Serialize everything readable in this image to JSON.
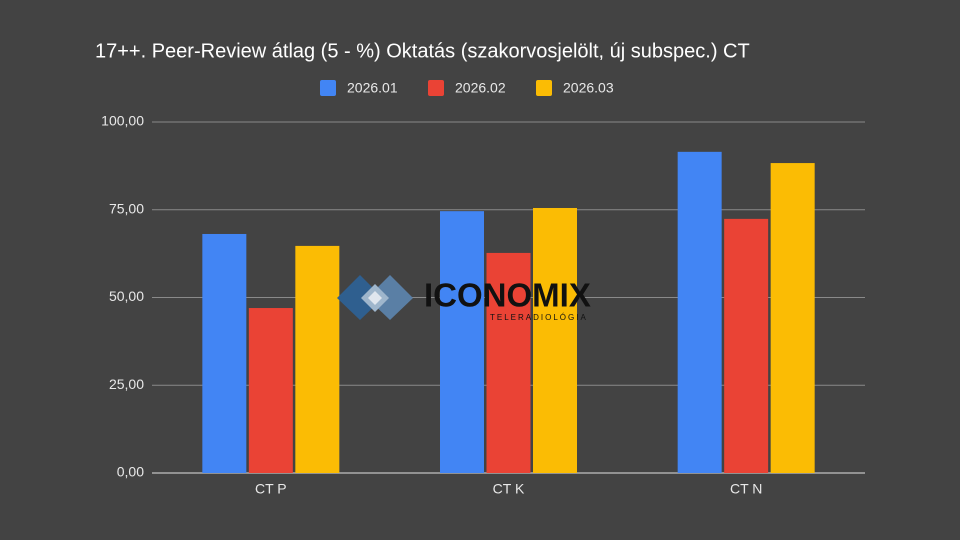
{
  "chart_data": {
    "type": "bar",
    "title": "17++. Peer-Review átlag (5 - %) Oktatás (szakorvosjelölt, új subspec.) CT",
    "categories": [
      "CT P",
      "CT K",
      "CT N"
    ],
    "series": [
      {
        "name": "2026.01",
        "color": "#4285f4",
        "values": [
          68.1,
          74.6,
          91.5
        ]
      },
      {
        "name": "2026.02",
        "color": "#ea4335",
        "values": [
          47.0,
          62.7,
          72.4
        ]
      },
      {
        "name": "2026.03",
        "color": "#fbbc04",
        "values": [
          64.7,
          75.5,
          88.3
        ]
      }
    ],
    "ylim": [
      0,
      100
    ],
    "yticks": [
      {
        "value": 0,
        "label": "0,00"
      },
      {
        "value": 25,
        "label": "25,00"
      },
      {
        "value": 50,
        "label": "50,00"
      },
      {
        "value": 75,
        "label": "75,00"
      },
      {
        "value": 100,
        "label": "100,00"
      }
    ],
    "grid": true,
    "legend": "top"
  },
  "logo": {
    "name": "ICONOMIX",
    "tagline": "TELERADIOLÓGIA"
  }
}
